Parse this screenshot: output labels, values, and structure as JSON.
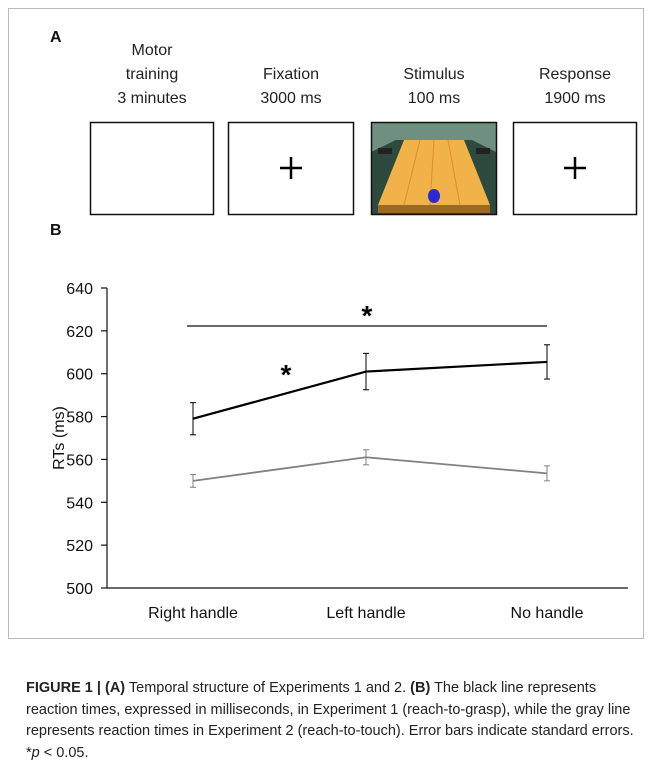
{
  "panel_a": {
    "label": "A",
    "steps": [
      {
        "lines": [
          "Motor",
          "training",
          "3 minutes"
        ]
      },
      {
        "lines": [
          "Fixation",
          "3000 ms"
        ]
      },
      {
        "lines": [
          "Stimulus",
          "100 ms"
        ]
      },
      {
        "lines": [
          "Response",
          "1900 ms"
        ]
      }
    ]
  },
  "chart_data": {
    "type": "line",
    "panel_label": "B",
    "y_label": "RTs (ms)",
    "categories": [
      "Right handle",
      "Left handle",
      "No handle"
    ],
    "series": [
      {
        "color": "#000000",
        "values": [
          579,
          601,
          605.5
        ],
        "errors": [
          7.5,
          8.5,
          8
        ]
      },
      {
        "color": "#808080",
        "values": [
          550,
          561,
          553.5
        ],
        "errors": [
          3,
          3.5,
          3.5
        ]
      }
    ],
    "ylim": [
      500,
      640
    ],
    "yticks": [
      500,
      520,
      540,
      560,
      580,
      600,
      620,
      640
    ],
    "annotations": [
      "*",
      "*"
    ]
  },
  "caption": [
    {
      "text": "FIGURE 1 | (A)",
      "style": "bold"
    },
    {
      "text": " Temporal structure of Experiments 1 and 2. ",
      "style": "normal"
    },
    {
      "text": "(B)",
      "style": "bold"
    },
    {
      "text": " The black line represents reaction times, expressed in milliseconds, in Experiment 1 (reach-to-grasp), while the gray line represents reaction times in Experiment 2 (reach-to-touch). Error bars indicate standard errors. *",
      "style": "normal"
    },
    {
      "text": "p",
      "style": "italic"
    },
    {
      "text": " < 0.05.",
      "style": "normal"
    }
  ]
}
